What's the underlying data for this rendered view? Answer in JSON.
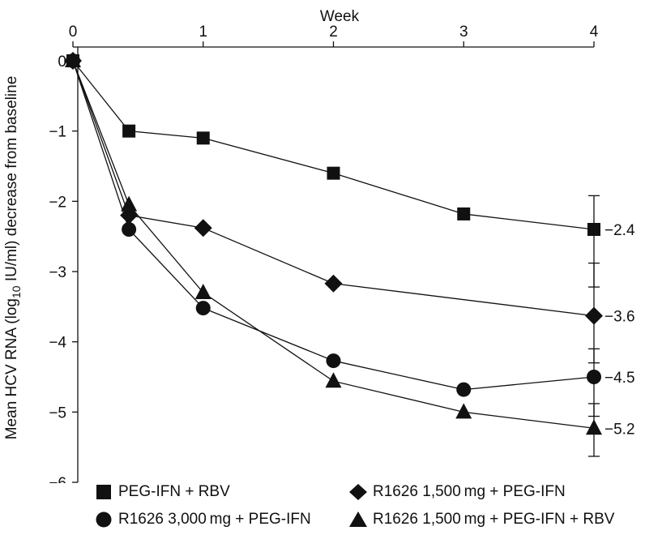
{
  "chart_data": {
    "type": "line",
    "title": "",
    "xlabel": "Week",
    "ylabel": "Mean HCV RNA (log10 IU/ml) decrease from baseline",
    "ylabel_parts": {
      "before": "Mean HCV RNA (log",
      "sub": "10",
      "after": " IU/ml) decrease from baseline"
    },
    "xlim": [
      0,
      4
    ],
    "ylim": [
      -6,
      0
    ],
    "x_ticks": [
      0,
      1,
      2,
      3,
      4
    ],
    "x_tick_labels": [
      "0",
      "1",
      "2",
      "3",
      "4"
    ],
    "y_ticks": [
      0,
      -1,
      -2,
      -3,
      -4,
      -5,
      -6
    ],
    "y_tick_labels": [
      "0",
      "−1",
      "−2",
      "−3",
      "−4",
      "−5",
      "−6"
    ],
    "x_axis_position": "top",
    "grid": false,
    "legend_position": "bottom",
    "series": [
      {
        "name": "PEG-IFN + RBV",
        "marker": "square",
        "x": [
          0,
          0.43,
          1,
          2,
          3,
          4
        ],
        "y": [
          0,
          -1.0,
          -1.1,
          -1.6,
          -2.18,
          -2.4
        ],
        "error_bar": {
          "x": 4,
          "low": -3.22,
          "high": -1.92
        },
        "end_label": "−2.4",
        "end_label_y": -2.4
      },
      {
        "name": "R1626 1,500mg + PEG-IFN",
        "marker": "diamond",
        "x": [
          0,
          0.43,
          1,
          2,
          4
        ],
        "y": [
          0,
          -2.2,
          -2.38,
          -3.17,
          -3.63
        ],
        "error_bar": {
          "x": 4,
          "low": -4.3,
          "high": -2.88
        },
        "end_label": "−3.6",
        "end_label_y": -3.63
      },
      {
        "name": "R1626 3,000mg + PEG-IFN",
        "marker": "circle",
        "x": [
          0,
          0.43,
          1,
          2,
          3,
          4
        ],
        "y": [
          0,
          -2.4,
          -3.52,
          -4.27,
          -4.68,
          -4.5
        ],
        "error_bar": {
          "x": 4,
          "low": -5.06,
          "high": -4.1
        },
        "end_label": "−4.5",
        "end_label_y": -4.5
      },
      {
        "name": "R1626 1,500mg + PEG-IFN + RBV",
        "marker": "triangle",
        "x": [
          0,
          0.43,
          1,
          2,
          3,
          4
        ],
        "y": [
          0,
          -2.05,
          -3.3,
          -4.56,
          -5.0,
          -5.23
        ],
        "error_bar": {
          "x": 4,
          "low": -5.63,
          "high": -4.88
        },
        "end_label": "−5.2",
        "end_label_y": -5.23
      }
    ]
  },
  "legend": {
    "items": [
      {
        "label": "PEG-IFN + RBV",
        "marker": "square"
      },
      {
        "label": "R1626 1,500 mg + PEG-IFN",
        "marker": "diamond"
      },
      {
        "label": "R1626 3,000 mg + PEG-IFN",
        "marker": "circle"
      },
      {
        "label": "R1626 1,500 mg + PEG-IFN + RBV",
        "marker": "triangle"
      }
    ]
  }
}
